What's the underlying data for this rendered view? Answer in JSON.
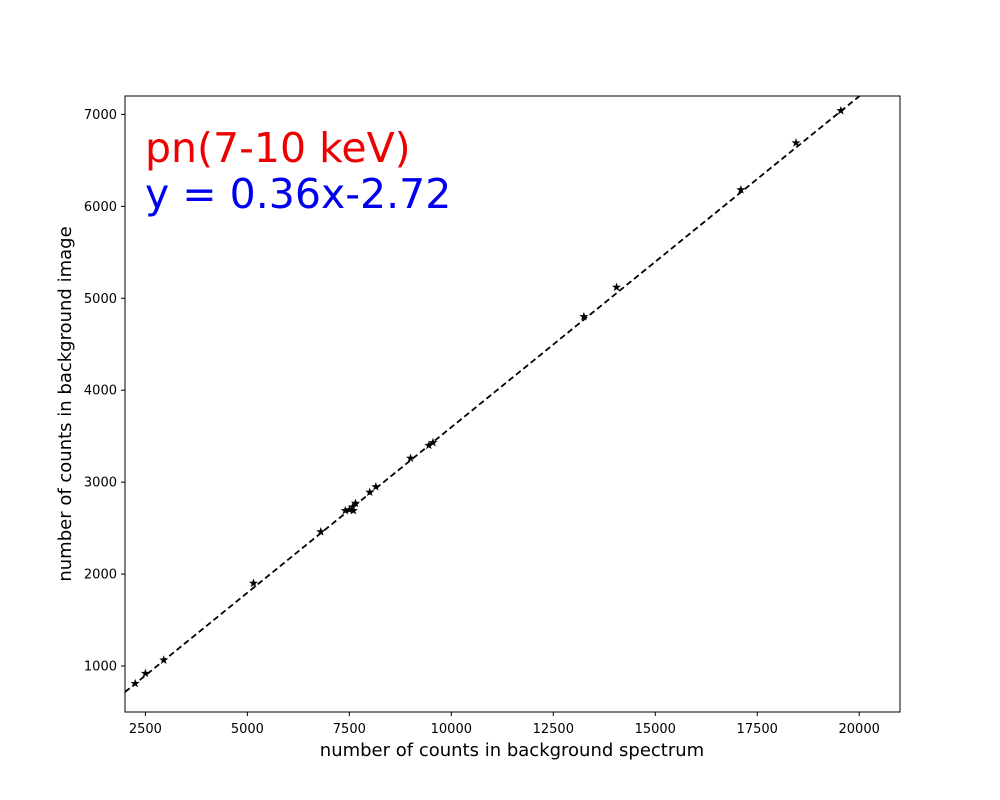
{
  "chart_data": {
    "type": "scatter",
    "title": "",
    "xlabel": "number of counts in background spectrum",
    "ylabel": "number of counts in background image",
    "xlim": [
      2000,
      21000
    ],
    "ylim": [
      500,
      7200
    ],
    "xticks": [
      2500,
      5000,
      7500,
      10000,
      12500,
      15000,
      17500,
      20000
    ],
    "yticks": [
      1000,
      2000,
      3000,
      4000,
      5000,
      6000,
      7000
    ],
    "grid": false,
    "legend": "none",
    "annotations": [
      {
        "text": "pn(7-10 keV)",
        "color": "#ee0000"
      },
      {
        "text": "y = 0.36x-2.72",
        "color": "#0000ee"
      }
    ],
    "fit_line": {
      "slope": 0.36,
      "intercept": -2.72,
      "style": "dashed",
      "color": "#000000"
    },
    "series": [
      {
        "marker": "star",
        "color": "#000000",
        "points": [
          [
            2250,
            810
          ],
          [
            2500,
            920
          ],
          [
            2950,
            1065
          ],
          [
            5150,
            1900
          ],
          [
            6800,
            2460
          ],
          [
            7400,
            2690
          ],
          [
            7500,
            2700
          ],
          [
            7580,
            2730
          ],
          [
            7600,
            2690
          ],
          [
            7650,
            2770
          ],
          [
            8000,
            2890
          ],
          [
            8150,
            2950
          ],
          [
            9000,
            3260
          ],
          [
            9450,
            3400
          ],
          [
            9550,
            3430
          ],
          [
            13250,
            4800
          ],
          [
            14050,
            5120
          ],
          [
            17100,
            6180
          ],
          [
            18450,
            6690
          ],
          [
            19550,
            7040
          ]
        ]
      }
    ]
  }
}
